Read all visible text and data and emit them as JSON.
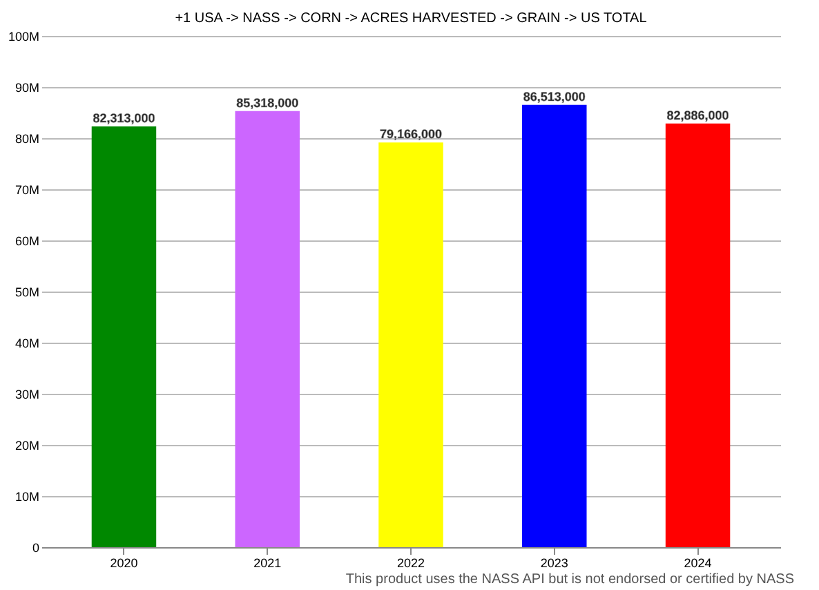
{
  "chart_data": {
    "type": "bar",
    "title": "+1 USA -> NASS -> CORN -> ACRES HARVESTED -> GRAIN -> US TOTAL",
    "categories": [
      "2020",
      "2021",
      "2022",
      "2023",
      "2024"
    ],
    "values": [
      82313000,
      85318000,
      79166000,
      86513000,
      82886000
    ],
    "colors": [
      "#008800",
      "#cc66ff",
      "#ffff00",
      "#0000ff",
      "#ff0000"
    ],
    "value_labels": [
      "82,313,000",
      "85,318,000",
      "79,166,000",
      "86,513,000",
      "82,886,000"
    ],
    "ylim": [
      0,
      100000000
    ],
    "yticks": [
      0,
      {
        "value": 10000000,
        "label": "10M"
      },
      {
        "value": 20000000,
        "label": "20M"
      },
      {
        "value": 30000000,
        "label": "30M"
      },
      {
        "value": 40000000,
        "label": "40M"
      },
      {
        "value": 50000000,
        "label": "50M"
      },
      {
        "value": 60000000,
        "label": "60M"
      },
      {
        "value": 70000000,
        "label": "70M"
      },
      {
        "value": 80000000,
        "label": "80M"
      },
      {
        "value": 90000000,
        "label": "90M"
      },
      {
        "value": 100000000,
        "label": "100M"
      }
    ],
    "grid": "y",
    "annotations": [
      "This product uses the NASS API but is not endorsed or certified by NASS"
    ]
  }
}
